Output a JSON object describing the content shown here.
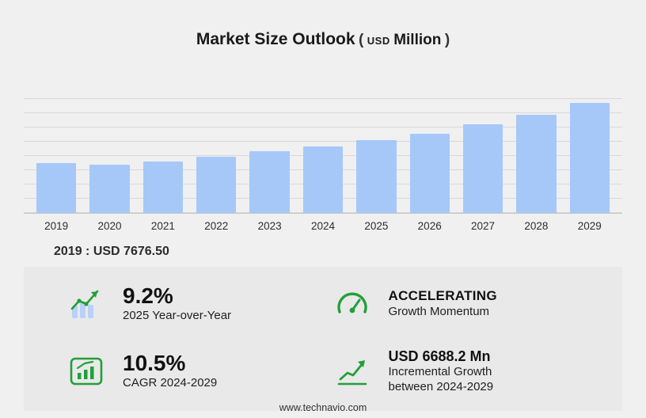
{
  "title": {
    "main": "Market Size Outlook",
    "paren_open": "(",
    "unit_small": "USD",
    "unit": "Million",
    "paren_close": ")"
  },
  "chart_data": {
    "type": "bar",
    "title": "Market Size Outlook (USD Million)",
    "categories": [
      "2019",
      "2020",
      "2021",
      "2022",
      "2023",
      "2024",
      "2025",
      "2026",
      "2027",
      "2028",
      "2029"
    ],
    "values": [
      7676.5,
      7450,
      7920,
      8770,
      9620,
      10330,
      11280,
      12300,
      13760,
      15230,
      17020
    ],
    "xlabel": "",
    "ylabel": "",
    "ylim": [
      0,
      17800
    ],
    "grid": true,
    "legend": "none",
    "bar_color": "#a6c8f8"
  },
  "annotation": {
    "base_year_label": "2019 : USD  7676.50"
  },
  "stats": {
    "yoy": {
      "value": "9.2%",
      "label": "2025 Year-over-Year"
    },
    "momentum": {
      "value": "ACCELERATING",
      "label": "Growth Momentum"
    },
    "cagr": {
      "value": "10.5%",
      "label": "CAGR 2024-2029"
    },
    "incremental": {
      "value": "USD 6688.2 Mn",
      "label": "Incremental Growth between 2024-2029"
    }
  },
  "footer": {
    "url": "www.technavio.com"
  },
  "colors": {
    "bar": "#a6c8f8",
    "green": "#21a038"
  }
}
